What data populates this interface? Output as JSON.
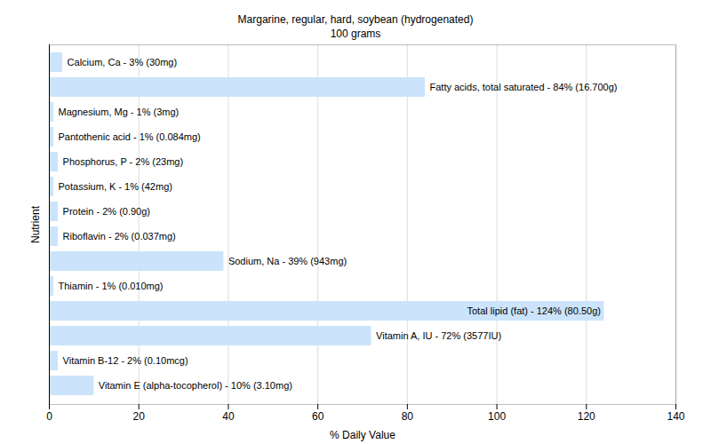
{
  "chart_data": {
    "type": "bar",
    "title": "Margarine, regular, hard, soybean (hydrogenated)",
    "subtitle": "100 grams",
    "x_label": "% Daily Value",
    "y_label": "Nutrient",
    "orientation": "horizontal",
    "categories": [
      "Calcium, Ca - 3% (30mg)",
      "Fatty acids, total saturated - 84% (16.700g)",
      "Magnesium, Mg - 1% (3mg)",
      "Pantothenic acid - 1% (0.084mg)",
      "Phosphorus, P - 2% (23mg)",
      "Potassium, K - 1% (42mg)",
      "Protein - 2% (0.90g)",
      "Riboflavin - 2% (0.037mg)",
      "Sodium, Na - 39% (943mg)",
      "Thiamin - 1% (0.010mg)",
      "Total lipid (fat) - 124% (80.50g)",
      "Vitamin A, IU - 72% (3577IU)",
      "Vitamin B-12 - 2% (0.10mcg)",
      "Vitamin E (alpha-tocopherol) - 10% (3.10mg)"
    ],
    "values": [
      3,
      84,
      1,
      1,
      2,
      1,
      2,
      2,
      39,
      1,
      124,
      72,
      2,
      10
    ],
    "color": "#cce4fb",
    "xlim": [
      0,
      140
    ],
    "xticks": [
      0,
      20,
      40,
      60,
      80,
      100,
      120,
      140
    ],
    "grid": true,
    "tick_labels": "x"
  }
}
